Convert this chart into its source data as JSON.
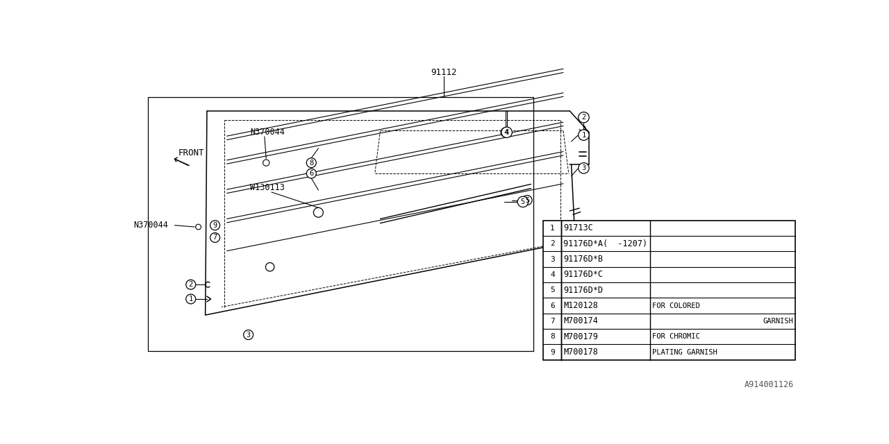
{
  "bg_color": "#ffffff",
  "lc": "#000000",
  "title_bottom": "A914001126",
  "part_number_top": "91112",
  "bom_entries": [
    {
      "num": 1,
      "part": "91713C",
      "note1": "",
      "note2": ""
    },
    {
      "num": 2,
      "part": "91176D*A(  -1207)",
      "note1": "",
      "note2": ""
    },
    {
      "num": 3,
      "part": "91176D*B",
      "note1": "",
      "note2": ""
    },
    {
      "num": 4,
      "part": "91176D*C",
      "note1": "",
      "note2": ""
    },
    {
      "num": 5,
      "part": "91176D*D",
      "note1": "",
      "note2": ""
    },
    {
      "num": 6,
      "part": "M120128",
      "note1": "FOR COLORED",
      "note2": ""
    },
    {
      "num": 7,
      "part": "M700174",
      "note1": "",
      "note2": "GARNISH"
    },
    {
      "num": 8,
      "part": "M700179",
      "note1": "FOR CHROMIC",
      "note2": ""
    },
    {
      "num": 9,
      "part": "M700178",
      "note1": "PLATING GARNISH",
      "note2": ""
    }
  ]
}
